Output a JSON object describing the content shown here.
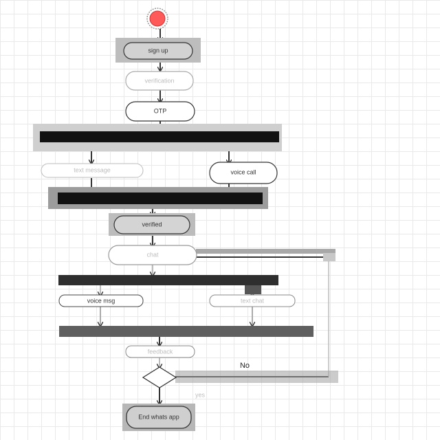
{
  "diagram": {
    "nodes": {
      "sign_up": "sign up",
      "verification": "verification",
      "otp": "OTP",
      "text_msg": "text message",
      "voice_call": "voice call",
      "verified": "verified",
      "chat": "chat",
      "voice_msg": "voice msg",
      "text_chat": "text chat",
      "feedback": "feedback",
      "end_app": "End whats app"
    },
    "edges": {
      "no": "No",
      "yes": "yes"
    }
  }
}
